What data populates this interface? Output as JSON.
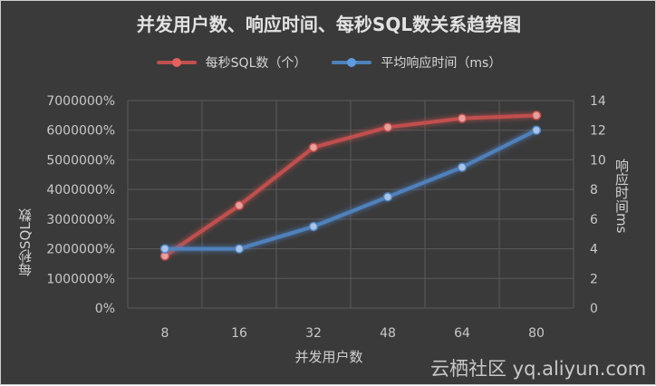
{
  "chart_data": {
    "type": "line",
    "title": "并发用户数、响应时间、每秒SQL数关系趋势图",
    "categories": [
      "8",
      "16",
      "32",
      "48",
      "64",
      "80"
    ],
    "xlabel": "并发用户数",
    "ylabel": "每秒SQL数",
    "y2label": "响应时间ms",
    "ylim": [
      0,
      7000000
    ],
    "y2lim": [
      0,
      14
    ],
    "yticks": [
      "0%",
      "1000000%",
      "2000000%",
      "3000000%",
      "4000000%",
      "5000000%",
      "6000000%",
      "7000000%"
    ],
    "y2ticks": [
      "0",
      "2",
      "4",
      "6",
      "8",
      "10",
      "12",
      "14"
    ],
    "series": [
      {
        "name": "每秒SQL数（个）",
        "axis": "left",
        "color": "#c0504d",
        "values": [
          1760000,
          3460000,
          5420000,
          6100000,
          6400000,
          6500000
        ]
      },
      {
        "name": "平均响应时间（ms）",
        "axis": "right",
        "color": "#4f81bd",
        "values": [
          4,
          4,
          5.5,
          7.5,
          9.5,
          12
        ]
      }
    ],
    "grid": true,
    "legend": "top-center"
  },
  "watermark": "云栖社区 yq.aliyun.com"
}
